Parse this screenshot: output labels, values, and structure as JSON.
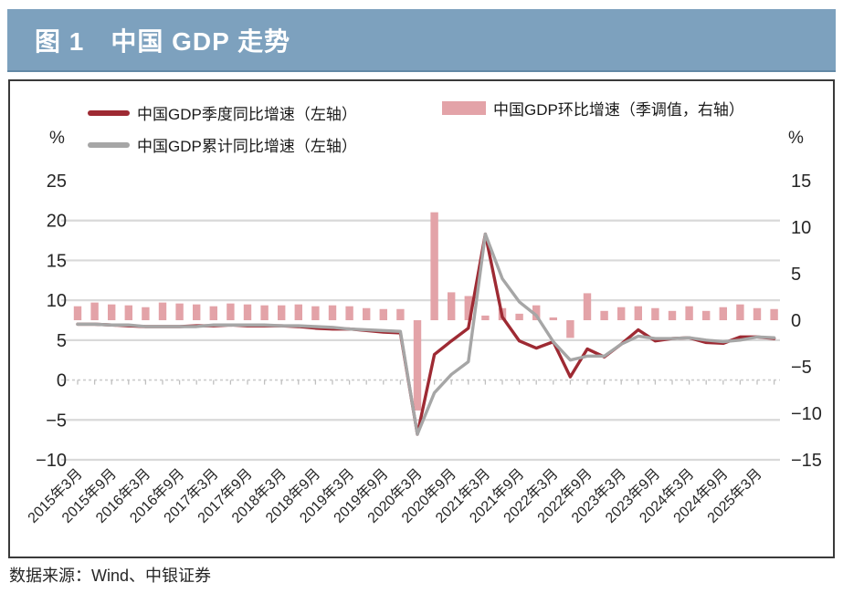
{
  "figure": {
    "title": "图 1　中国 GDP 走势",
    "source_note": "数据来源：Wind、中银证券"
  },
  "legend": {
    "quarterly_yoy": "中国GDP季度同比增速（左轴）",
    "cumulative_yoy": "中国GDP累计同比增速（左轴）",
    "qoq_sa": "中国GDP环比增速（季调值，右轴）"
  },
  "colors": {
    "title_bar_bg": "#7DA1BE",
    "quarterly_line": "#9E2A33",
    "cumulative_line": "#A6A6A6",
    "qoq_bar": "#E3A3A8",
    "gridline": "#D9D9D9",
    "axis_text": "#262626"
  },
  "chart_data": {
    "type": "bar",
    "subtype": "combo-line-bar",
    "categories": [
      "2015年3月",
      "2015年6月",
      "2015年9月",
      "2015年12月",
      "2016年3月",
      "2016年6月",
      "2016年9月",
      "2016年12月",
      "2017年3月",
      "2017年6月",
      "2017年9月",
      "2017年12月",
      "2018年3月",
      "2018年6月",
      "2018年9月",
      "2018年12月",
      "2019年3月",
      "2019年6月",
      "2019年9月",
      "2019年12月",
      "2020年3月",
      "2020年6月",
      "2020年9月",
      "2020年12月",
      "2021年3月",
      "2021年6月",
      "2021年9月",
      "2021年12月",
      "2022年3月",
      "2022年6月",
      "2022年9月",
      "2022年12月",
      "2023年3月",
      "2023年6月",
      "2023年9月",
      "2023年12月",
      "2024年3月",
      "2024年6月",
      "2024年9月",
      "2024年12月",
      "2025年3月",
      "2025年6月"
    ],
    "x_tick_labels": [
      "2015年3月",
      "2015年9月",
      "2016年3月",
      "2016年9月",
      "2017年3月",
      "2017年9月",
      "2018年3月",
      "2018年9月",
      "2019年3月",
      "2019年9月",
      "2020年3月",
      "2020年9月",
      "2021年3月",
      "2021年9月",
      "2022年3月",
      "2022年9月",
      "2023年3月",
      "2023年9月",
      "2024年3月",
      "2024年9月",
      "2025年3月"
    ],
    "series": [
      {
        "name": "中国GDP季度同比增速（左轴）",
        "type": "line",
        "axis": "left",
        "color": "#9E2A33",
        "values": [
          7.0,
          7.0,
          6.9,
          6.8,
          6.7,
          6.7,
          6.7,
          6.8,
          6.8,
          6.9,
          6.8,
          6.8,
          6.8,
          6.7,
          6.5,
          6.4,
          6.4,
          6.2,
          6.0,
          5.9,
          -6.8,
          3.2,
          4.9,
          6.5,
          18.3,
          7.9,
          4.9,
          4.0,
          4.8,
          0.4,
          3.9,
          2.9,
          4.5,
          6.3,
          4.9,
          5.2,
          5.3,
          4.7,
          4.6,
          5.4,
          5.4,
          5.2
        ]
      },
      {
        "name": "中国GDP累计同比增速（左轴）",
        "type": "line",
        "axis": "left",
        "color": "#A6A6A6",
        "values": [
          7.0,
          7.0,
          6.9,
          6.9,
          6.7,
          6.7,
          6.7,
          6.7,
          6.9,
          6.9,
          6.9,
          6.9,
          6.8,
          6.8,
          6.7,
          6.6,
          6.4,
          6.3,
          6.2,
          6.1,
          -6.8,
          -1.6,
          0.7,
          2.3,
          18.3,
          12.7,
          9.8,
          8.1,
          4.8,
          2.5,
          3.0,
          3.0,
          4.5,
          5.5,
          5.2,
          5.2,
          5.3,
          5.0,
          4.8,
          5.0,
          5.4,
          5.3
        ]
      },
      {
        "name": "中国GDP环比增速（季调值，右轴）",
        "type": "bar",
        "axis": "right",
        "color": "#E3A3A8",
        "values": [
          1.5,
          1.9,
          1.7,
          1.6,
          1.4,
          1.9,
          1.8,
          1.7,
          1.5,
          1.8,
          1.7,
          1.6,
          1.6,
          1.7,
          1.5,
          1.6,
          1.5,
          1.3,
          1.2,
          1.2,
          -9.7,
          11.6,
          3.0,
          2.6,
          0.5,
          1.3,
          0.7,
          1.6,
          0.3,
          -1.9,
          2.9,
          1.0,
          1.4,
          1.5,
          1.3,
          1.0,
          1.5,
          1.0,
          1.4,
          1.7,
          1.3,
          1.2
        ]
      }
    ],
    "left_axis": {
      "unit": "%",
      "min": -10,
      "max": 25,
      "ticks": [
        25,
        20,
        15,
        10,
        5,
        0,
        -5,
        -10
      ]
    },
    "right_axis": {
      "unit": "%",
      "min": -15,
      "max": 15,
      "ticks": [
        15,
        10,
        5,
        0,
        -5,
        -10,
        -15
      ]
    },
    "gridlines_at_left_values": [
      20,
      15,
      10,
      5,
      -5,
      -10
    ],
    "zero_line_style": "dashed-with-quarter-ticks",
    "legend_position": "top",
    "title": "图 1　中国 GDP 走势"
  }
}
